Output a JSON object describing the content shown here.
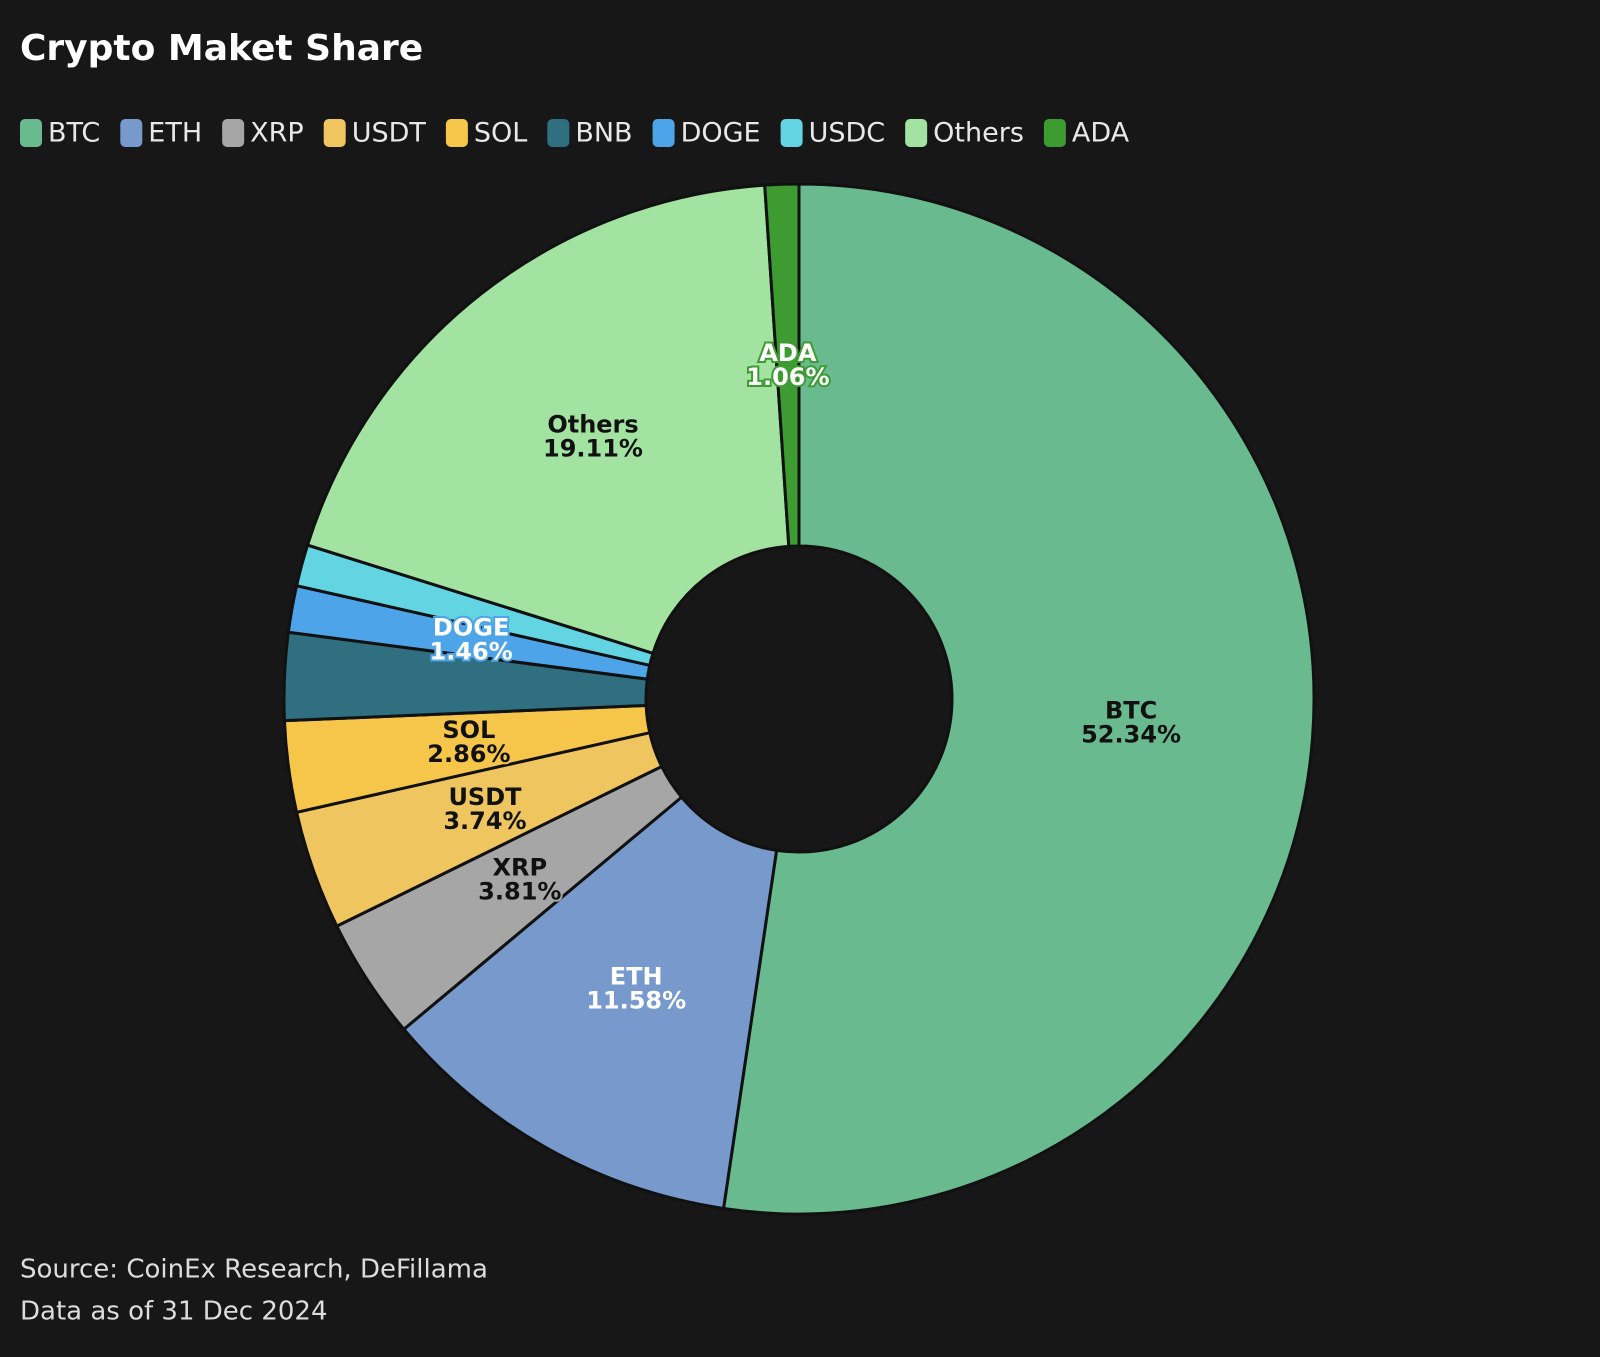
{
  "chart_data": {
    "type": "donut",
    "title": "Crypto Maket Share",
    "categories": [
      "BTC",
      "ETH",
      "XRP",
      "USDT",
      "SOL",
      "BNB",
      "DOGE",
      "USDC",
      "Others",
      "ADA"
    ],
    "values": [
      52.34,
      11.58,
      3.81,
      3.74,
      2.86,
      2.74,
      1.46,
      1.3,
      19.11,
      1.06
    ],
    "value_labels": [
      "52.34%",
      "11.58%",
      "3.81%",
      "3.74%",
      "2.86%",
      null,
      "1.46%",
      null,
      "19.11%",
      "1.06%"
    ],
    "colors": [
      "#6aba8f",
      "#7799cc",
      "#a6a6a6",
      "#eec55f",
      "#f5c64a",
      "#2f6f80",
      "#4ea4e8",
      "#62d4e2",
      "#a2e3a2",
      "#3d9b32"
    ],
    "label_colors": [
      "#111111",
      "#ffffff",
      "#111111",
      "#111111",
      "#111111",
      "#ffffff",
      "#ffffff",
      "#111111",
      "#111111",
      "#ffffff"
    ],
    "notes": [
      "Source: CoinEx Research, DeFillama",
      "Data as of 31 Dec 2024"
    ]
  }
}
